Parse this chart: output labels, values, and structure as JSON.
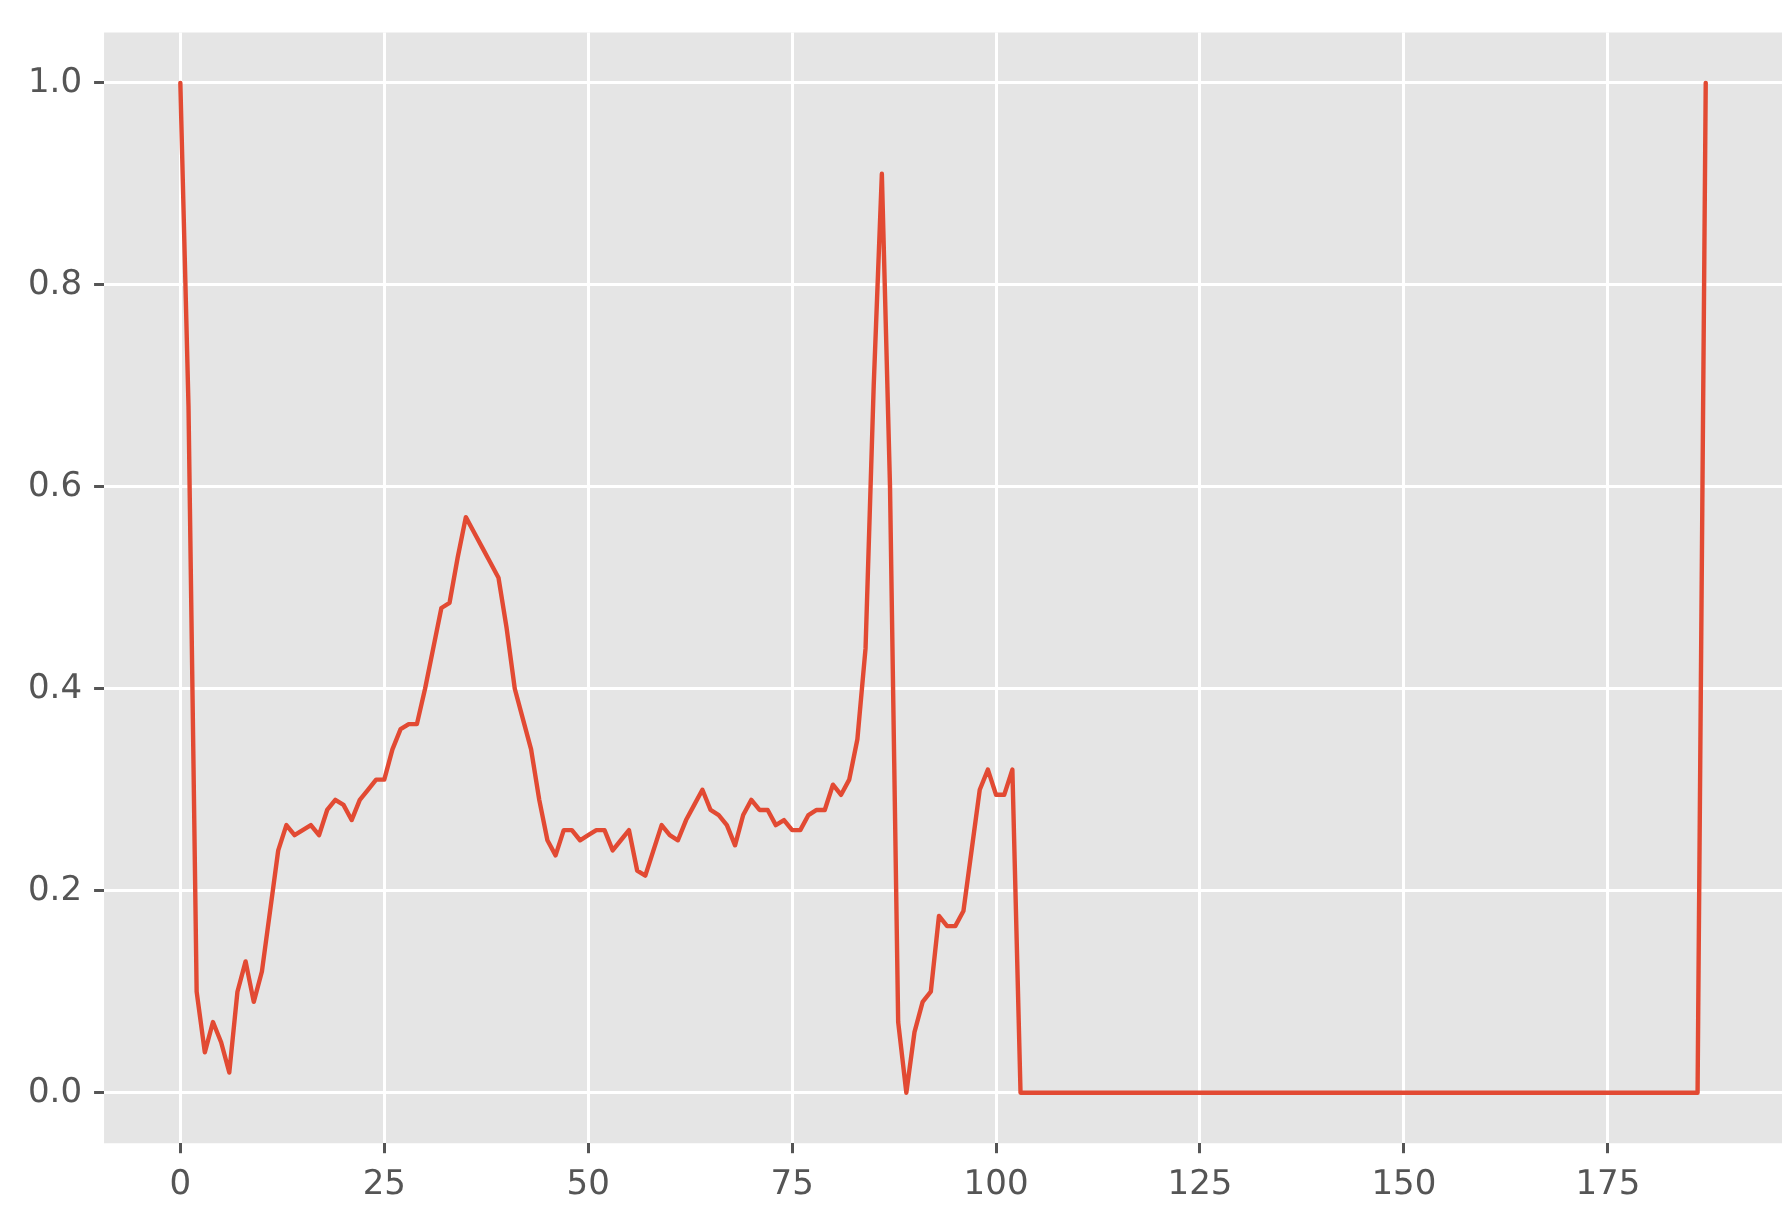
{
  "chart_data": {
    "type": "line",
    "x": [
      0,
      1,
      2,
      3,
      4,
      5,
      6,
      7,
      8,
      9,
      10,
      11,
      12,
      13,
      14,
      15,
      16,
      17,
      18,
      19,
      20,
      21,
      22,
      23,
      24,
      25,
      26,
      27,
      28,
      29,
      30,
      31,
      32,
      33,
      34,
      35,
      36,
      37,
      38,
      39,
      40,
      41,
      42,
      43,
      44,
      45,
      46,
      47,
      48,
      49,
      50,
      51,
      52,
      53,
      54,
      55,
      56,
      57,
      58,
      59,
      60,
      61,
      62,
      63,
      64,
      65,
      66,
      67,
      68,
      69,
      70,
      71,
      72,
      73,
      74,
      75,
      76,
      77,
      78,
      79,
      80,
      81,
      82,
      83,
      84,
      85,
      86,
      87,
      88,
      89,
      90,
      91,
      92,
      93,
      94,
      95,
      96,
      97,
      98,
      99,
      100,
      101,
      102,
      103,
      186,
      187
    ],
    "series": [
      {
        "color": "#e24a33",
        "values": [
          1.0,
          0.68,
          0.1,
          0.04,
          0.07,
          0.05,
          0.02,
          0.1,
          0.13,
          0.09,
          0.12,
          0.18,
          0.24,
          0.265,
          0.255,
          0.26,
          0.265,
          0.255,
          0.28,
          0.29,
          0.285,
          0.27,
          0.29,
          0.3,
          0.31,
          0.31,
          0.34,
          0.36,
          0.365,
          0.365,
          0.4,
          0.44,
          0.48,
          0.485,
          0.53,
          0.57,
          0.555,
          0.54,
          0.525,
          0.51,
          0.46,
          0.4,
          0.37,
          0.34,
          0.29,
          0.25,
          0.235,
          0.26,
          0.26,
          0.25,
          0.255,
          0.26,
          0.26,
          0.24,
          0.25,
          0.26,
          0.22,
          0.215,
          0.24,
          0.265,
          0.255,
          0.25,
          0.27,
          0.285,
          0.3,
          0.28,
          0.275,
          0.265,
          0.245,
          0.275,
          0.29,
          0.28,
          0.28,
          0.265,
          0.27,
          0.26,
          0.26,
          0.275,
          0.28,
          0.28,
          0.305,
          0.295,
          0.31,
          0.35,
          0.44,
          0.7,
          0.91,
          0.6,
          0.07,
          0.0,
          0.06,
          0.09,
          0.1,
          0.175,
          0.165,
          0.165,
          0.18,
          0.24,
          0.3,
          0.32,
          0.295,
          0.295,
          0.32,
          0.0,
          0.0,
          1.0
        ]
      }
    ],
    "xlim": [
      -9.35,
      196.35
    ],
    "ylim": [
      -0.05,
      1.05
    ],
    "xticks": [
      0,
      25,
      50,
      75,
      100,
      125,
      150,
      175
    ],
    "yticks": [
      {
        "value": 0,
        "label": "0.0"
      },
      {
        "value": 0.2,
        "label": "0.2"
      },
      {
        "value": 0.4,
        "label": "0.4"
      },
      {
        "value": 0.6,
        "label": "0.6"
      },
      {
        "value": 0.8,
        "label": "0.8"
      },
      {
        "value": 1,
        "label": "1.0"
      }
    ],
    "grid": true,
    "marker": "none",
    "line_style": "solid"
  }
}
